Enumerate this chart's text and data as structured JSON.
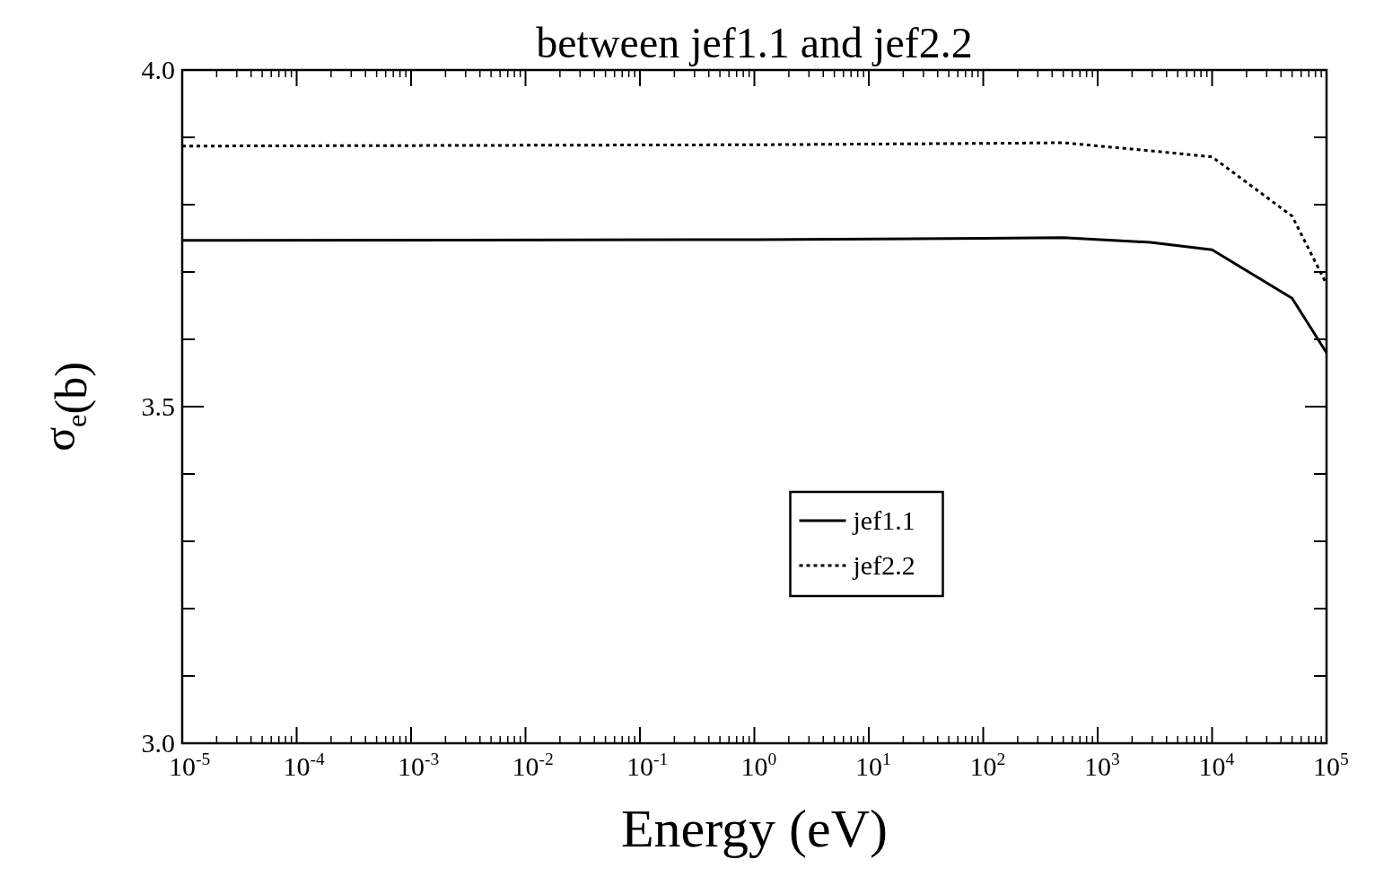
{
  "chart_data": {
    "type": "line",
    "title": "between jef1.1 and jef2.2",
    "xlabel": "Energy (eV)",
    "ylabel": "σ$_{e}$(b)",
    "log": "x",
    "xlim": [
      1e-05,
      100000.0
    ],
    "ylim": [
      3.0,
      4.0
    ],
    "xticks": [
      {
        "value": 1e-05,
        "label": "10$^{-5}$"
      },
      {
        "value": 0.0001,
        "label": "10$^{-4}$"
      },
      {
        "value": 0.001,
        "label": "10$^{-3}$"
      },
      {
        "value": 0.01,
        "label": "10$^{-2}$"
      },
      {
        "value": 0.1,
        "label": "10$^{-1}$"
      },
      {
        "value": 1,
        "label": "10$^{0}$"
      },
      {
        "value": 10,
        "label": "10$^{1}$"
      },
      {
        "value": 100,
        "label": "10$^{2}$"
      },
      {
        "value": 1000,
        "label": "10$^{3}$"
      },
      {
        "value": 10000,
        "label": "10$^{4}$"
      },
      {
        "value": 100000,
        "label": "10$^{5}$"
      }
    ],
    "yticks": [
      {
        "value": 3.0,
        "label": "3.0"
      },
      {
        "value": 3.1,
        "label": null
      },
      {
        "value": 3.2,
        "label": null
      },
      {
        "value": 3.3,
        "label": null
      },
      {
        "value": 3.4,
        "label": null
      },
      3.5,
      {
        "value": 3.6,
        "label": null
      },
      {
        "value": 3.7,
        "label": null
      },
      {
        "value": 3.8,
        "label": null
      },
      {
        "value": 3.9,
        "label": null
      },
      {
        "value": 4.0,
        "label": "4.0"
      }
    ],
    "grid": false,
    "legend": "bottom",
    "marker": "none",
    "series": [
      {
        "name": "jef1.1",
        "color": "#000000",
        "line_style": "solid",
        "x": [
          1e-05,
          1,
          100,
          500,
          2900,
          10000,
          50000,
          100000
        ],
        "values": [
          3.747,
          3.748,
          3.75,
          3.751,
          3.744,
          3.733,
          3.661,
          3.58
        ]
      },
      {
        "name": "jef2.2",
        "color": "#000000",
        "line_style": "dotted",
        "x": [
          1e-05,
          1,
          100,
          500,
          2900,
          10000,
          50000,
          100000
        ],
        "values": [
          3.887,
          3.889,
          3.891,
          3.892,
          3.88,
          3.871,
          3.783,
          3.682
        ]
      }
    ]
  }
}
